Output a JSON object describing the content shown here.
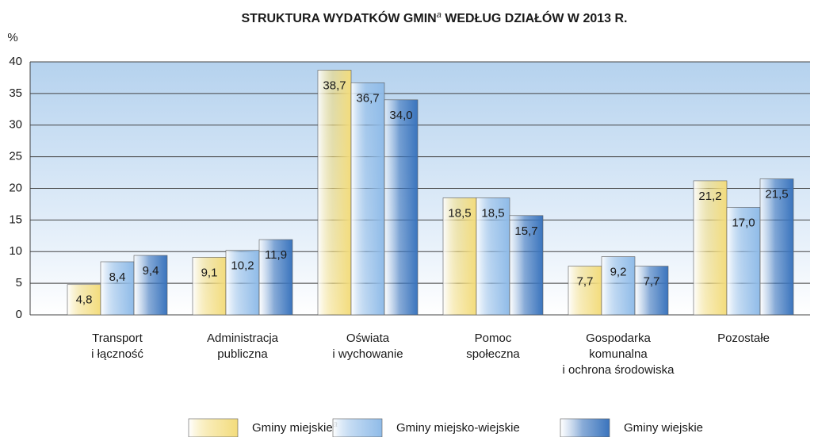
{
  "chart_data": {
    "type": "bar",
    "title": [
      "STRUKTURA WYDATKÓW GMIN",
      "a",
      " WEDŁUG DZIAŁÓW W 2013 R."
    ],
    "y_label": "%",
    "categories": [
      [
        "Transport",
        "i łączność"
      ],
      [
        "Administracja",
        "publiczna"
      ],
      [
        "Oświata",
        "i wychowanie"
      ],
      [
        "Pomoc",
        "społeczna"
      ],
      [
        "Gospodarka",
        "komunalna",
        "i ochrona środowiska"
      ],
      [
        "Pozostałe"
      ]
    ],
    "series": [
      {
        "name": "Gminy miejskie",
        "superscript": "a",
        "color": "#f3dc7c",
        "values": [
          4.8,
          9.1,
          38.7,
          18.5,
          7.7,
          21.2
        ],
        "value_labels": [
          "4,8",
          "9,1",
          "38,7",
          "18,5",
          "7,7",
          "21,2"
        ]
      },
      {
        "name": "Gminy miejsko-wiejskie",
        "color": "#8fbbe8",
        "values": [
          8.4,
          10.2,
          36.7,
          18.5,
          9.2,
          17.0
        ],
        "value_labels": [
          "8,4",
          "10,2",
          "36,7",
          "18,5",
          "9,2",
          "17,0"
        ]
      },
      {
        "name": "Gminy wiejskie",
        "color": "#3a74bd",
        "values": [
          9.4,
          11.9,
          34.0,
          15.7,
          7.7,
          21.5
        ],
        "value_labels": [
          "9,4",
          "11,9",
          "34,0",
          "15,7",
          "7,7",
          "21,5"
        ]
      }
    ],
    "ylim": [
      0,
      40
    ],
    "yticks": [
      0,
      5,
      10,
      15,
      20,
      25,
      30,
      35,
      40
    ],
    "grid": true
  }
}
